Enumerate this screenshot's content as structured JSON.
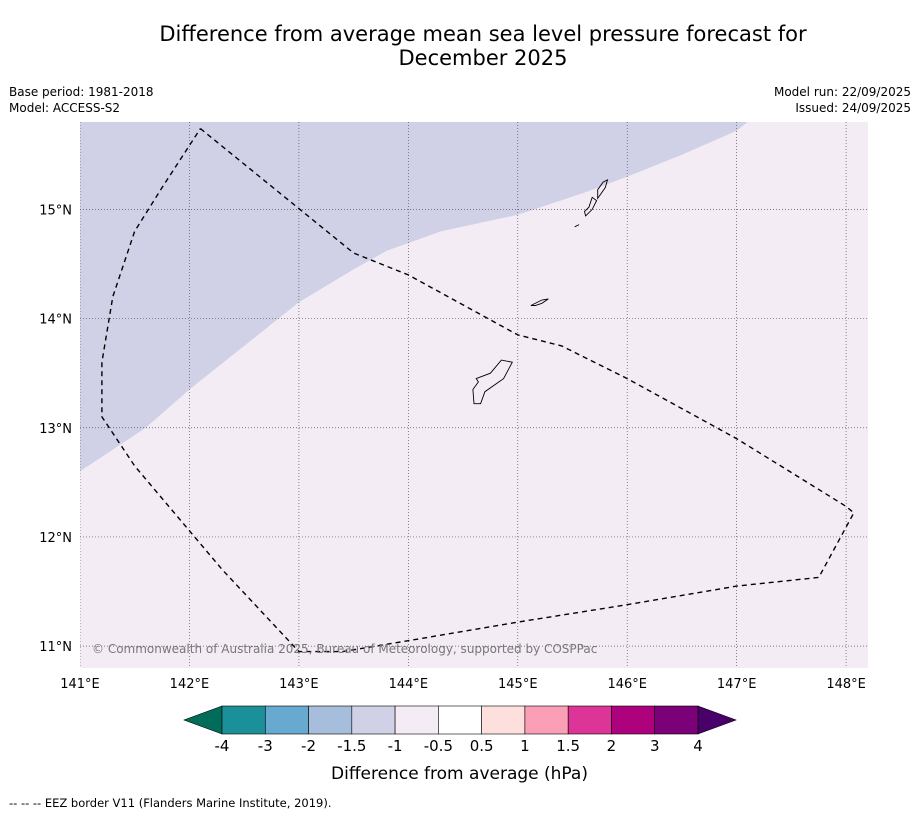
{
  "title_line1": "Difference from average mean sea level pressure forecast for",
  "title_line2": "December 2025",
  "base_period": "Base period: 1981-2018",
  "model": "Model: ACCESS-S2",
  "model_run": "Model run: 22/09/2025",
  "issued": "Issued: 24/09/2025",
  "copyright": "© Commonwealth of Australia 2025, Bureau of Meteorology, supported by COSPPac",
  "colorbar_label": "Difference from average (hPa)",
  "footer_note": "--  --  -- EEZ border V11 (Flanders Marine Institute, 2019).",
  "map_extent": {
    "lon": [
      141.0,
      148.2
    ],
    "lat": [
      10.8,
      15.8
    ]
  },
  "lon_ticks": [
    {
      "value": 141,
      "label": "141°E"
    },
    {
      "value": 142,
      "label": "142°E"
    },
    {
      "value": 143,
      "label": "143°E"
    },
    {
      "value": 144,
      "label": "144°E"
    },
    {
      "value": 145,
      "label": "145°E"
    },
    {
      "value": 146,
      "label": "146°E"
    },
    {
      "value": 147,
      "label": "147°E"
    },
    {
      "value": 148,
      "label": "148°E"
    }
  ],
  "lat_ticks": [
    {
      "value": 11,
      "label": "11°N"
    },
    {
      "value": 12,
      "label": "12°N"
    },
    {
      "value": 13,
      "label": "13°N"
    },
    {
      "value": 14,
      "label": "14°N"
    },
    {
      "value": 15,
      "label": "15°N"
    }
  ],
  "anomaly_boundary_lonlat": [
    [
      141.0,
      12.6
    ],
    [
      141.3,
      12.8
    ],
    [
      141.6,
      13.0
    ],
    [
      142.0,
      13.35
    ],
    [
      142.5,
      13.75
    ],
    [
      143.0,
      14.15
    ],
    [
      143.5,
      14.45
    ],
    [
      143.8,
      14.62
    ],
    [
      144.3,
      14.8
    ],
    [
      145.0,
      14.95
    ],
    [
      145.6,
      15.15
    ],
    [
      146.0,
      15.3
    ],
    [
      146.5,
      15.5
    ],
    [
      147.0,
      15.72
    ],
    [
      147.1,
      15.8
    ]
  ],
  "region_colors": {
    "below": "#d0d1e6",
    "above": "#f4ecf5"
  },
  "eez_border_lonlat": [
    [
      142.1,
      15.74
    ],
    [
      143.5,
      14.6
    ],
    [
      144.0,
      14.4
    ],
    [
      145.0,
      13.85
    ],
    [
      145.4,
      13.75
    ],
    [
      146.0,
      13.45
    ],
    [
      147.0,
      12.9
    ],
    [
      148.0,
      12.28
    ],
    [
      148.07,
      12.22
    ],
    [
      147.75,
      11.63
    ],
    [
      147.0,
      11.55
    ],
    [
      146.0,
      11.38
    ],
    [
      145.0,
      11.22
    ],
    [
      144.0,
      11.05
    ],
    [
      143.4,
      10.95
    ],
    [
      143.0,
      10.95
    ],
    [
      142.3,
      11.7
    ],
    [
      141.5,
      12.65
    ],
    [
      141.2,
      13.1
    ],
    [
      141.2,
      13.6
    ],
    [
      141.3,
      14.2
    ],
    [
      141.5,
      14.8
    ],
    [
      141.75,
      15.2
    ],
    [
      142.1,
      15.74
    ]
  ],
  "islands_lonlat": [
    [
      [
        144.62,
        13.45
      ],
      [
        144.75,
        13.5
      ],
      [
        144.85,
        13.62
      ],
      [
        144.95,
        13.6
      ],
      [
        144.87,
        13.45
      ],
      [
        144.7,
        13.33
      ],
      [
        144.66,
        13.22
      ],
      [
        144.6,
        13.22
      ],
      [
        144.59,
        13.35
      ],
      [
        144.64,
        13.42
      ]
    ],
    [
      [
        145.12,
        14.12
      ],
      [
        145.22,
        14.17
      ],
      [
        145.28,
        14.18
      ],
      [
        145.22,
        14.14
      ],
      [
        145.16,
        14.12
      ]
    ],
    [
      [
        145.62,
        14.94
      ],
      [
        145.68,
        15.0
      ],
      [
        145.72,
        15.08
      ],
      [
        145.68,
        15.11
      ],
      [
        145.65,
        15.02
      ],
      [
        145.61,
        14.98
      ]
    ],
    [
      [
        145.73,
        15.1
      ],
      [
        145.8,
        15.2
      ],
      [
        145.82,
        15.27
      ],
      [
        145.78,
        15.25
      ],
      [
        145.73,
        15.18
      ]
    ],
    [
      [
        145.52,
        14.84
      ],
      [
        145.56,
        14.86
      ]
    ]
  ],
  "colorbar": {
    "ticks": [
      "-4",
      "-3",
      "-2",
      "-1.5",
      "-1",
      "-0.5",
      "0.5",
      "1",
      "1.5",
      "2",
      "3",
      "4"
    ],
    "under_color": "#016c59",
    "over_color": "#49006a",
    "bins": [
      "#1c9099",
      "#67a9cf",
      "#a6bddb",
      "#d0d1e6",
      "#f4ecf5",
      "#ffffff",
      "#fde0dd",
      "#fa9fb5",
      "#dd3497",
      "#ae017e",
      "#7a0177"
    ]
  }
}
